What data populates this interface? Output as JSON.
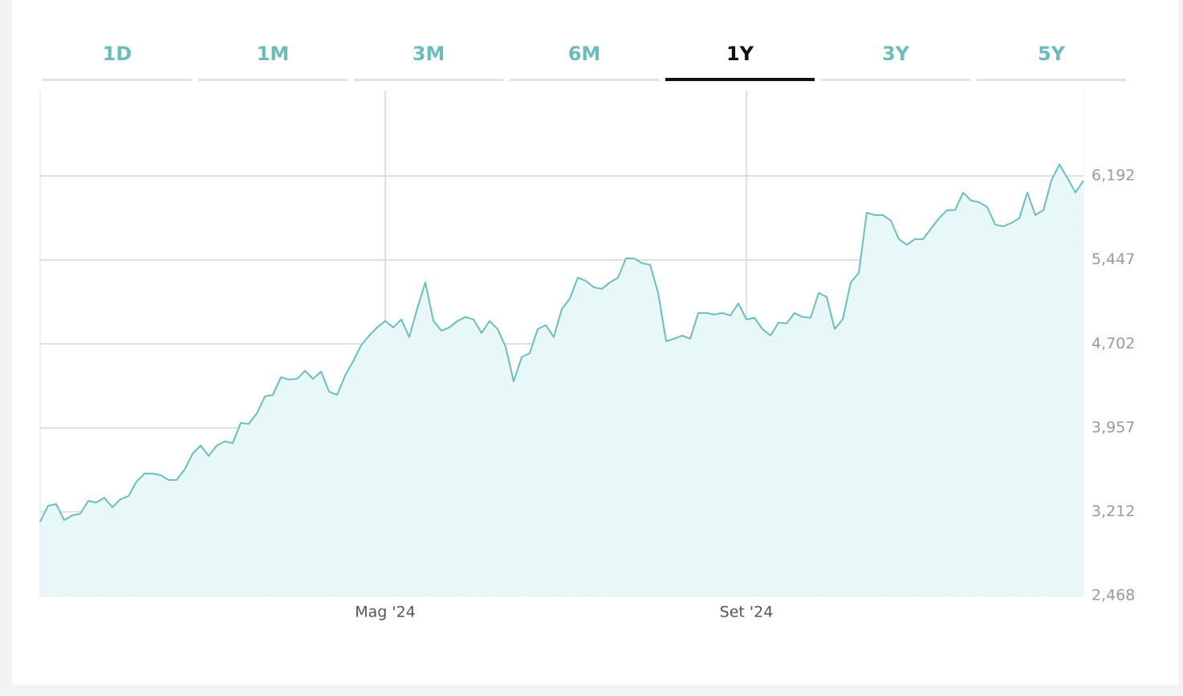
{
  "tabs": [
    "1D",
    "1M",
    "3M",
    "6M",
    "1Y",
    "3Y",
    "5Y"
  ],
  "selected_tab_index": 4,
  "chart_data": {
    "type": "line",
    "categories": [
      null,
      null,
      null,
      null,
      null,
      null,
      null,
      null,
      null,
      null,
      null,
      null,
      null,
      null,
      null,
      null,
      null,
      null,
      null,
      null,
      null,
      null,
      null,
      null,
      null,
      null,
      null,
      null,
      null,
      null,
      null,
      null,
      null,
      null,
      null,
      null,
      null,
      null,
      null,
      null,
      null,
      null,
      null,
      "Mag '24",
      null,
      null,
      null,
      null,
      null,
      null,
      null,
      null,
      null,
      null,
      null,
      null,
      null,
      null,
      null,
      null,
      null,
      null,
      null,
      null,
      null,
      null,
      null,
      null,
      null,
      null,
      null,
      null,
      null,
      null,
      null,
      null,
      null,
      null,
      null,
      null,
      null,
      null,
      null,
      null,
      null,
      null,
      null,
      null,
      "Set '24",
      null,
      null,
      null,
      null,
      null,
      null,
      null,
      null,
      null,
      null,
      null,
      null,
      null,
      null,
      null,
      null,
      null,
      null,
      null,
      null,
      null,
      null,
      null,
      null,
      null,
      null,
      null,
      null,
      null,
      null,
      null,
      null,
      null,
      null,
      null,
      null,
      null,
      null,
      null,
      null,
      null,
      null
    ],
    "values": [
      3123,
      3266,
      3280,
      3138,
      3180,
      3195,
      3309,
      3294,
      3337,
      3252,
      3323,
      3351,
      3480,
      3551,
      3551,
      3537,
      3494,
      3494,
      3587,
      3729,
      3800,
      3708,
      3800,
      3836,
      3822,
      4000,
      3993,
      4085,
      4235,
      4249,
      4406,
      4385,
      4392,
      4463,
      4392,
      4456,
      4278,
      4249,
      4420,
      4548,
      4691,
      4776,
      4848,
      4905,
      4848,
      4919,
      4762,
      5019,
      5247,
      4905,
      4819,
      4848,
      4905,
      4940,
      4919,
      4798,
      4905,
      4833,
      4677,
      4370,
      4584,
      4620,
      4833,
      4869,
      4762,
      5011,
      5104,
      5289,
      5261,
      5204,
      5190,
      5247,
      5289,
      5460,
      5460,
      5418,
      5403,
      5154,
      4726,
      4748,
      4776,
      4748,
      4976,
      4976,
      4962,
      4976,
      4954,
      5061,
      4919,
      4933,
      4833,
      4776,
      4890,
      4883,
      4976,
      4940,
      4933,
      5154,
      5118,
      4833,
      4919,
      5247,
      5332,
      5866,
      5845,
      5845,
      5795,
      5631,
      5581,
      5631,
      5631,
      5724,
      5817,
      5888,
      5888,
      6045,
      5973,
      5959,
      5916,
      5760,
      5745,
      5774,
      5817,
      6045,
      5845,
      5888,
      6151,
      6294,
      6173,
      6045,
      6151
    ],
    "color": "#6dbdbb",
    "fill_color": "#e8f7f7",
    "ylim": [
      2468,
      6948
    ],
    "yticks": [
      {
        "value": 2468,
        "label": "2,468"
      },
      {
        "value": 3212,
        "label": "3,212"
      },
      {
        "value": 3957,
        "label": "3,957"
      },
      {
        "value": 4702,
        "label": "4,702"
      },
      {
        "value": 5447,
        "label": "5,447"
      },
      {
        "value": 6192,
        "label": "6,192"
      }
    ],
    "grid": true
  }
}
